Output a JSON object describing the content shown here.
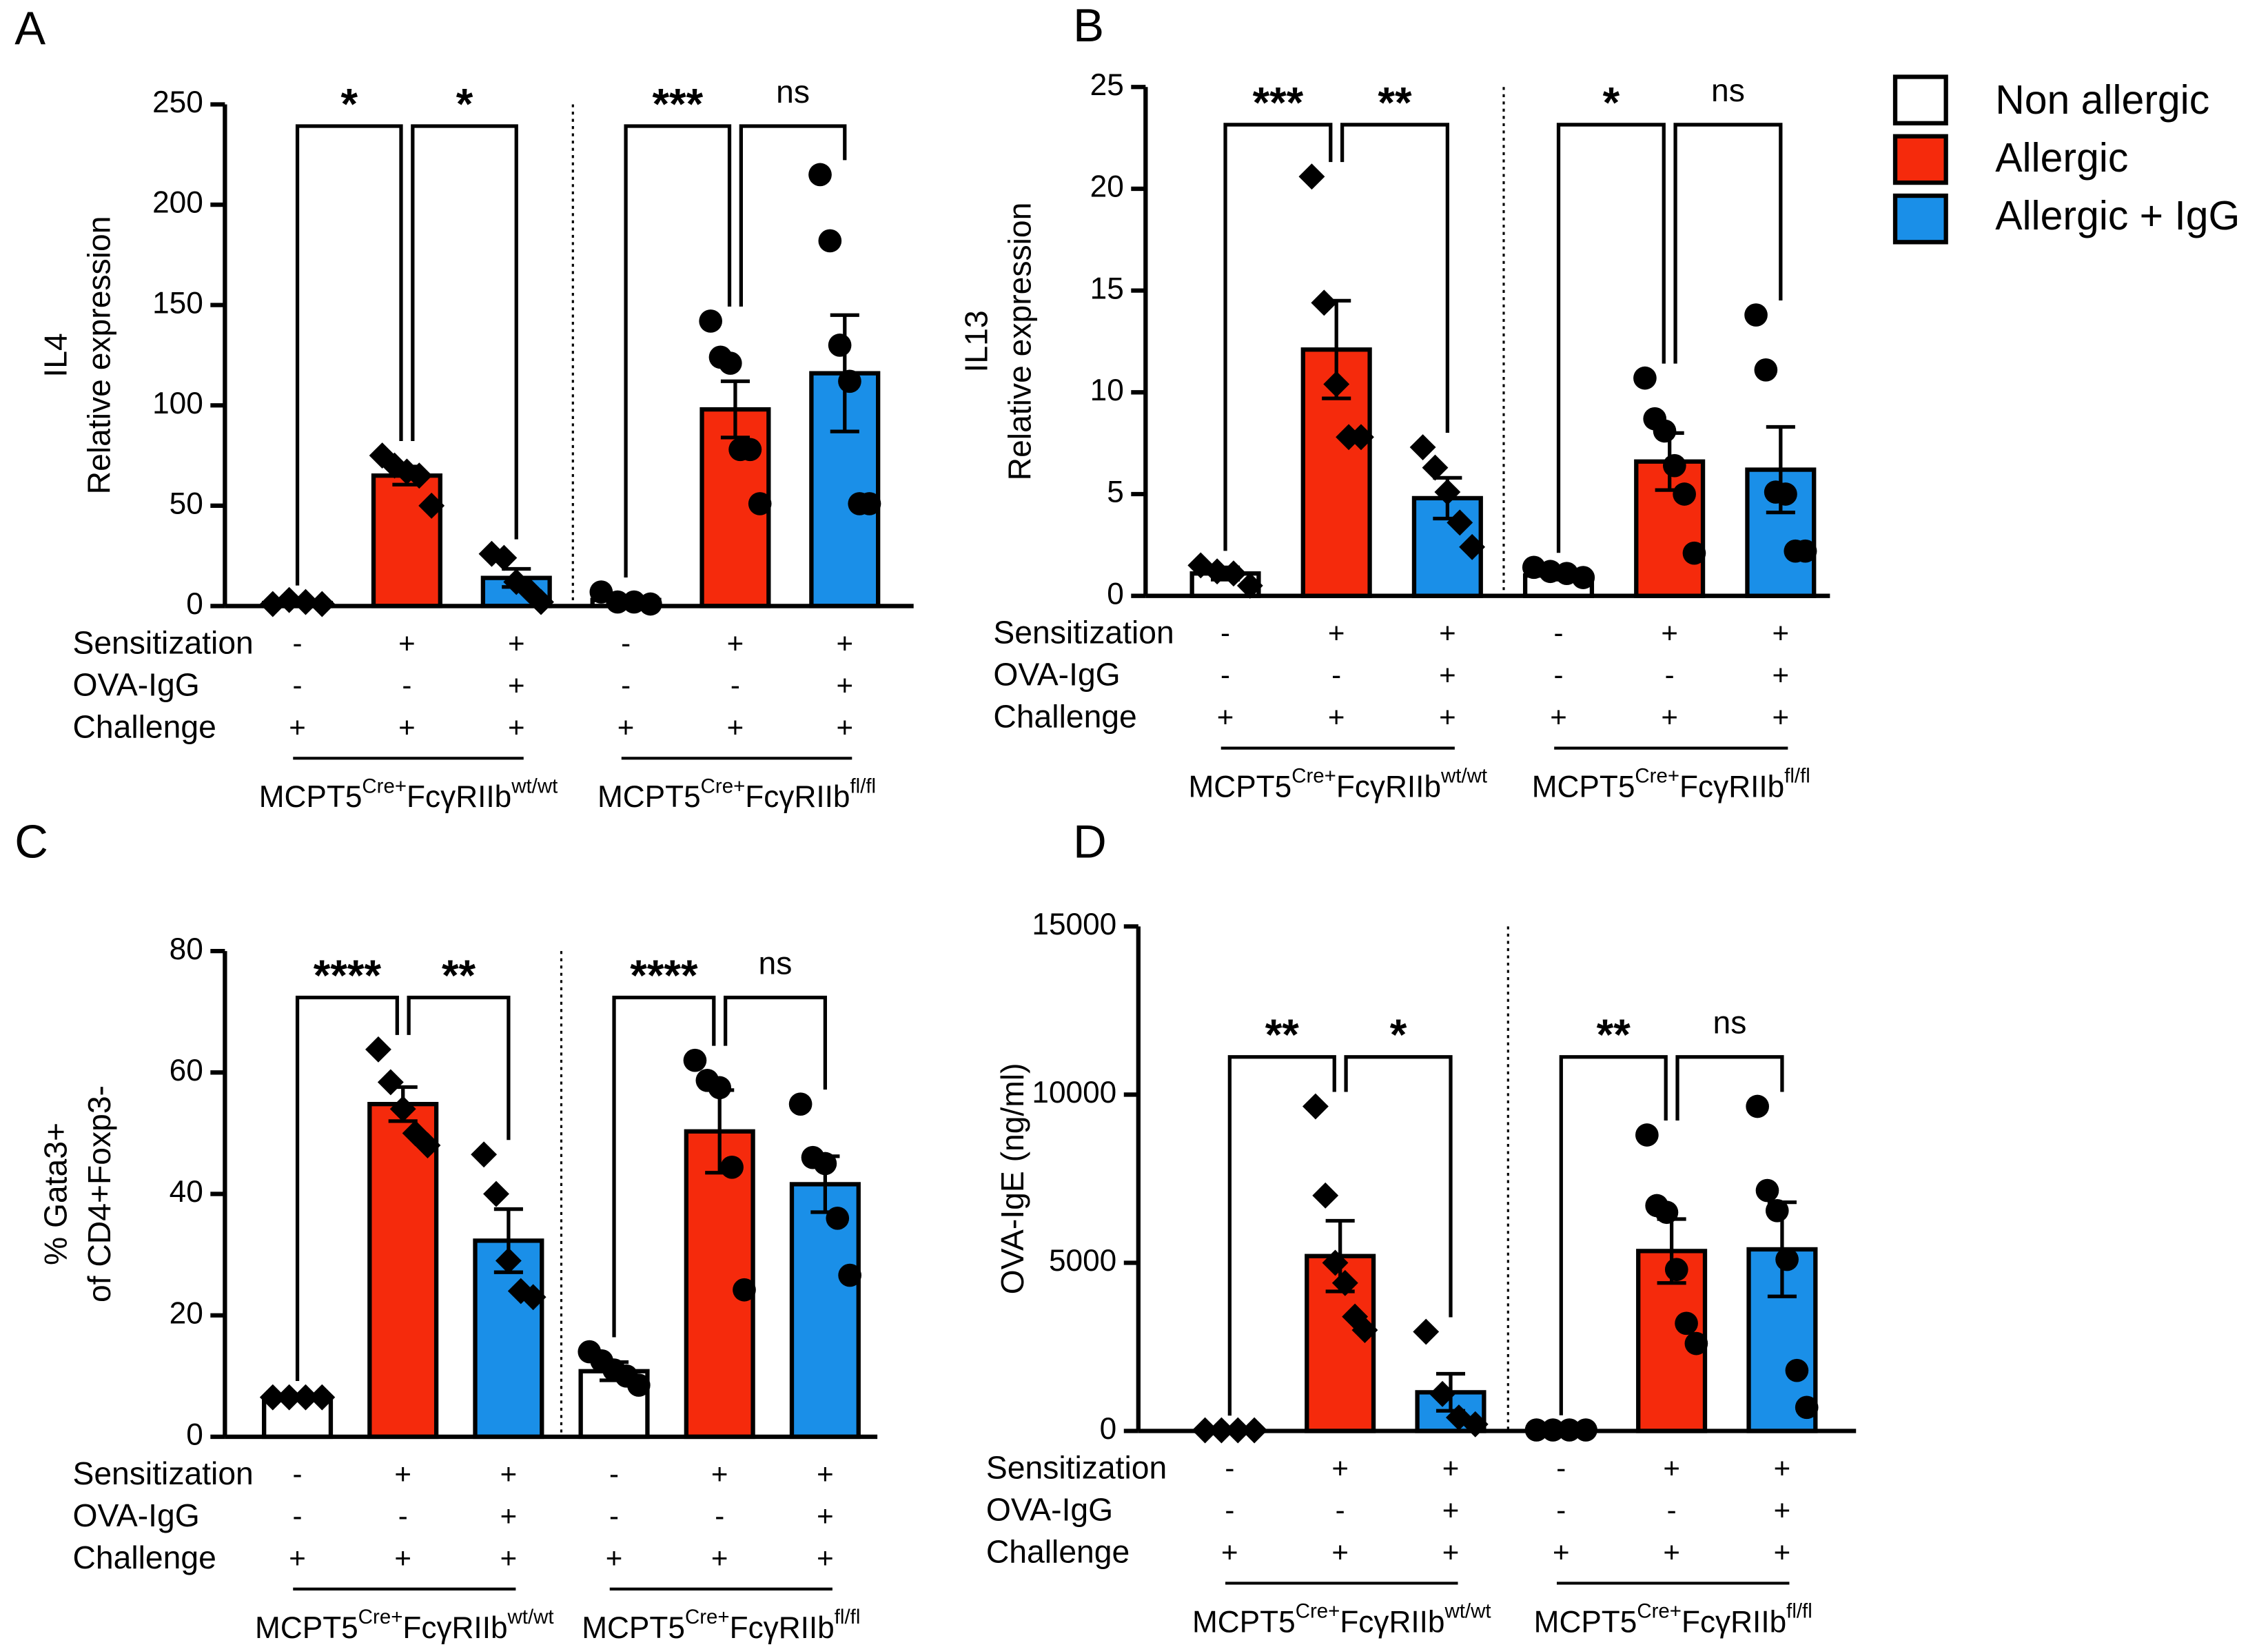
{
  "legend": [
    {
      "name": "Non allergic",
      "color": "#ffffff"
    },
    {
      "name": "Allergic",
      "color": "#f52a0c"
    },
    {
      "name": "Allergic + IgG",
      "color": "#1a8fe8"
    }
  ],
  "chart_data": [
    {
      "type": "bar",
      "panel": "A",
      "ylabel": [
        "IL4",
        "Relative expression"
      ],
      "ylim": [
        0,
        250
      ],
      "yticks": [
        0,
        50,
        100,
        150,
        200,
        250
      ],
      "groups": [
        [
          "MCPT5",
          "Cre+",
          "FcγRIIb",
          "wt/wt"
        ],
        [
          "MCPT5",
          "Cre+",
          "FcγRIIb",
          "fl/fl"
        ]
      ],
      "markers": [
        "diamond",
        "circle"
      ],
      "conditions": [
        {
          "label": "Sensitization",
          "signs": [
            "-",
            "+",
            "+",
            "-",
            "+",
            "+"
          ]
        },
        {
          "label": "OVA-IgG",
          "signs": [
            "-",
            "-",
            "+",
            "-",
            "-",
            "+"
          ]
        },
        {
          "label": "Challenge",
          "signs": [
            "+",
            "+",
            "+",
            "+",
            "+",
            "+"
          ]
        }
      ],
      "series": [
        {
          "values": [
            1.5,
            3
          ],
          "errors": [
            0.5,
            1.2
          ],
          "points": [
            [
              1,
              3,
              2,
              1
            ],
            [
              7,
              2,
              2,
              1
            ]
          ]
        },
        {
          "values": [
            65,
            98
          ],
          "errors": [
            4.5,
            14
          ],
          "points": [
            [
              75,
              70,
              67,
              65,
              50
            ],
            [
              142,
              124,
              121,
              78,
              78,
              51
            ]
          ]
        },
        {
          "values": [
            14,
            116
          ],
          "errors": [
            4.5,
            29
          ],
          "points": [
            [
              26,
              24,
              12,
              8,
              2
            ],
            [
              215,
              182,
              130,
              112,
              51,
              51
            ]
          ]
        }
      ],
      "comparisons": [
        {
          "bars": [
            0,
            1
          ],
          "label": "*"
        },
        {
          "bars": [
            1,
            2
          ],
          "label": "*"
        },
        {
          "bars": [
            3,
            4
          ],
          "label": "***"
        },
        {
          "bars": [
            4,
            5
          ],
          "label": "ns"
        }
      ]
    },
    {
      "type": "bar",
      "panel": "B",
      "ylabel": [
        "IL13",
        "Relative expression"
      ],
      "ylim": [
        0,
        25
      ],
      "yticks": [
        0,
        5,
        10,
        15,
        20,
        25
      ],
      "groups": [
        [
          "MCPT5",
          "Cre+",
          "FcγRIIb",
          "wt/wt"
        ],
        [
          "MCPT5",
          "Cre+",
          "FcγRIIb",
          "fl/fl"
        ]
      ],
      "markers": [
        "diamond",
        "circle"
      ],
      "conditions": [
        {
          "label": "Sensitization",
          "signs": [
            "-",
            "+",
            "+",
            "-",
            "+",
            "+"
          ]
        },
        {
          "label": "OVA-IgG",
          "signs": [
            "-",
            "-",
            "+",
            "-",
            "-",
            "+"
          ]
        },
        {
          "label": "Challenge",
          "signs": [
            "+",
            "+",
            "+",
            "+",
            "+",
            "+"
          ]
        }
      ],
      "series": [
        {
          "values": [
            1.1,
            1.0
          ],
          "errors": [
            0.3,
            0.2
          ],
          "points": [
            [
              1.5,
              1.2,
              1.1,
              0.5
            ],
            [
              1.4,
              1.2,
              1.1,
              0.9
            ]
          ]
        },
        {
          "values": [
            12.1,
            6.6
          ],
          "errors": [
            2.4,
            1.4
          ],
          "points": [
            [
              20.6,
              14.4,
              10.4,
              7.8,
              7.8
            ],
            [
              10.7,
              8.7,
              8.1,
              6.4,
              5.0,
              2.1
            ]
          ]
        },
        {
          "values": [
            4.8,
            6.2
          ],
          "errors": [
            1.0,
            2.1
          ],
          "points": [
            [
              7.3,
              6.3,
              5.1,
              3.6,
              2.4
            ],
            [
              13.8,
              11.1,
              5.1,
              5.0,
              2.2,
              2.2
            ]
          ]
        }
      ],
      "comparisons": [
        {
          "bars": [
            0,
            1
          ],
          "label": "***"
        },
        {
          "bars": [
            1,
            2
          ],
          "label": "**"
        },
        {
          "bars": [
            3,
            4
          ],
          "label": "*"
        },
        {
          "bars": [
            4,
            5
          ],
          "label": "ns"
        }
      ]
    },
    {
      "type": "bar",
      "panel": "C",
      "ylabel": [
        "% Gata3+",
        "of CD4+Foxp3-"
      ],
      "ylim": [
        0,
        80
      ],
      "yticks": [
        0,
        20,
        40,
        60,
        80
      ],
      "groups": [
        [
          "MCPT5",
          "Cre+",
          "FcγRIIb",
          "wt/wt"
        ],
        [
          "MCPT5",
          "Cre+",
          "FcγRIIb",
          "fl/fl"
        ]
      ],
      "markers": [
        "diamond",
        "circle"
      ],
      "conditions": [
        {
          "label": "Sensitization",
          "signs": [
            "-",
            "+",
            "+",
            "-",
            "+",
            "+"
          ]
        },
        {
          "label": "OVA-IgG",
          "signs": [
            "-",
            "-",
            "+",
            "-",
            "-",
            "+"
          ]
        },
        {
          "label": "Challenge",
          "signs": [
            "+",
            "+",
            "+",
            "+",
            "+",
            "+"
          ]
        }
      ],
      "series": [
        {
          "values": [
            6.5,
            10.8
          ],
          "errors": [
            0.3,
            1.5
          ],
          "points": [
            [
              6.5,
              6.5,
              6.5,
              6.5
            ],
            [
              14,
              12.5,
              11,
              10,
              8.5
            ]
          ]
        },
        {
          "values": [
            54.8,
            50.3
          ],
          "errors": [
            2.8,
            6.8
          ],
          "points": [
            [
              63.8,
              58.4,
              54,
              50,
              48
            ],
            [
              62,
              58.7,
              57.5,
              44.4,
              24.2
            ]
          ]
        },
        {
          "values": [
            32.3,
            41.6
          ],
          "errors": [
            5.2,
            4.6
          ],
          "points": [
            [
              46.5,
              40,
              29,
              24,
              23
            ],
            [
              54.8,
              46,
              45,
              36,
              26.6
            ]
          ]
        }
      ],
      "comparisons": [
        {
          "bars": [
            0,
            1
          ],
          "label": "****"
        },
        {
          "bars": [
            1,
            2
          ],
          "label": "**"
        },
        {
          "bars": [
            3,
            4
          ],
          "label": "****"
        },
        {
          "bars": [
            4,
            5
          ],
          "label": "ns"
        }
      ]
    },
    {
      "type": "bar",
      "panel": "D",
      "ylabel": [
        "OVA-IgE (ng/ml)"
      ],
      "ylim": [
        0,
        15000
      ],
      "yticks": [
        0,
        5000,
        10000,
        15000
      ],
      "groups": [
        [
          "MCPT5",
          "Cre+",
          "FcγRIIb",
          "wt/wt"
        ],
        [
          "MCPT5",
          "Cre+",
          "FcγRIIb",
          "fl/fl"
        ]
      ],
      "markers": [
        "diamond",
        "circle"
      ],
      "conditions": [
        {
          "label": "Sensitization",
          "signs": [
            "-",
            "+",
            "+",
            "-",
            "+",
            "+"
          ]
        },
        {
          "label": "OVA-IgG",
          "signs": [
            "-",
            "-",
            "+",
            "-",
            "-",
            "+"
          ]
        },
        {
          "label": "Challenge",
          "signs": [
            "+",
            "+",
            "+",
            "+",
            "+",
            "+"
          ]
        }
      ],
      "series": [
        {
          "values": [
            20,
            30
          ],
          "errors": [
            5,
            5
          ],
          "points": [
            [
              20,
              20,
              20,
              20
            ],
            [
              30,
              30,
              30,
              30
            ]
          ]
        },
        {
          "values": [
            5200,
            5350
          ],
          "errors": [
            1050,
            950
          ],
          "points": [
            [
              9650,
              7000,
              5000,
              4400,
              3400,
              3000
            ],
            [
              8800,
              6700,
              6500,
              4800,
              3200,
              2600
            ]
          ]
        },
        {
          "values": [
            1150,
            5400
          ],
          "errors": [
            550,
            1400
          ],
          "points": [
            [
              2950,
              1100,
              400,
              200
            ],
            [
              9650,
              7150,
              6550,
              5100,
              1800,
              700
            ]
          ]
        }
      ],
      "comparisons": [
        {
          "bars": [
            0,
            1
          ],
          "label": "**"
        },
        {
          "bars": [
            1,
            2
          ],
          "label": "*"
        },
        {
          "bars": [
            3,
            4
          ],
          "label": "**"
        },
        {
          "bars": [
            4,
            5
          ],
          "label": "ns"
        }
      ]
    }
  ]
}
